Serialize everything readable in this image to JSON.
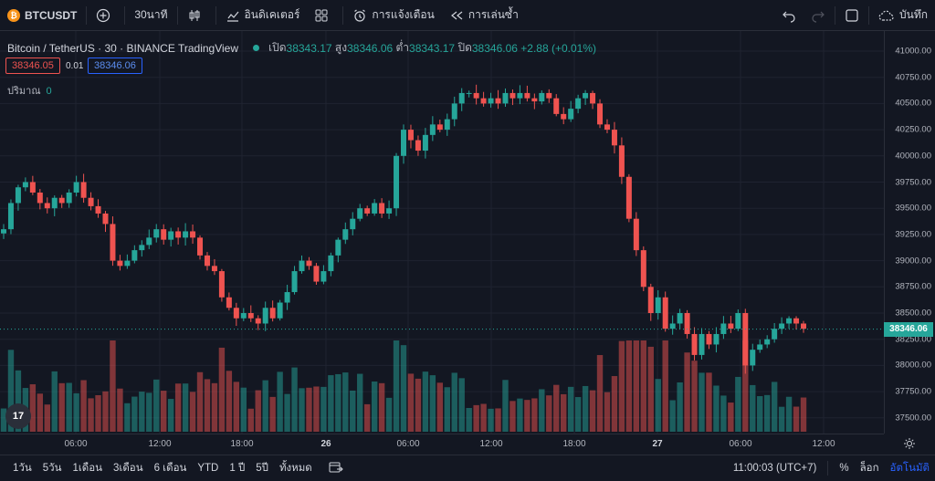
{
  "topbar": {
    "symbol": "BTCUSDT",
    "interval": "30นาที",
    "indicators": "อินดิเคเตอร์",
    "alert": "การแจ้งเตือน",
    "replay": "การเล่นซ้ำ",
    "save": "บันทึก"
  },
  "legend": {
    "title": "Bitcoin / TetherUS · 30 · BINANCE  TradingView",
    "open_label": "เปิด",
    "open": "38343.17",
    "high_label": "สูง",
    "high": "38346.06",
    "low_label": "ต่ำ",
    "low": "38343.17",
    "close_label": "ปิด",
    "close": "38346.06",
    "change": "+2.88 (+0.01%)",
    "bid": "38346.05",
    "spread": "0.01",
    "ask": "38346.06",
    "volume_label": "ปริมาณ",
    "volume": "0"
  },
  "price_axis": {
    "ticks": [
      "41000.00",
      "40750.00",
      "40500.00",
      "40250.00",
      "40000.00",
      "39750.00",
      "39500.00",
      "39250.00",
      "39000.00",
      "38750.00",
      "38500.00",
      "38250.00",
      "38000.00",
      "37750.00",
      "37500.00"
    ],
    "last_price": "38346.06"
  },
  "time_axis": {
    "ticks": [
      {
        "label": "06:00",
        "bold": false
      },
      {
        "label": "12:00",
        "bold": false
      },
      {
        "label": "18:00",
        "bold": false
      },
      {
        "label": "26",
        "bold": true
      },
      {
        "label": "06:00",
        "bold": false
      },
      {
        "label": "12:00",
        "bold": false
      },
      {
        "label": "18:00",
        "bold": false
      },
      {
        "label": "27",
        "bold": true
      },
      {
        "label": "06:00",
        "bold": false
      },
      {
        "label": "12:00",
        "bold": false
      }
    ]
  },
  "bottombar": {
    "ranges": [
      "1วัน",
      "5วัน",
      "1เดือน",
      "3เดือน",
      "6 เดือน",
      "YTD",
      "1 ปี",
      "5ปี",
      "ทั้งหมด"
    ],
    "clock": "11:00:03 (UTC+7)",
    "percent": "%",
    "log": "ล็อก",
    "auto": "อัตโนมัติ"
  },
  "colors": {
    "up": "#26a69a",
    "down": "#ef5350",
    "background": "#131722",
    "grid": "#1f2330"
  },
  "chart_data": {
    "type": "candlestick",
    "symbol": "BTCUSDT",
    "interval": "30",
    "ylim": [
      37400,
      41100
    ],
    "closes": [
      39300,
      39550,
      39700,
      39750,
      39650,
      39550,
      39500,
      39600,
      39550,
      39650,
      39750,
      39600,
      39520,
      39450,
      39350,
      39000,
      38950,
      39000,
      39100,
      39150,
      39220,
      39300,
      39200,
      39280,
      39220,
      39280,
      39220,
      39050,
      38950,
      38900,
      38650,
      38550,
      38450,
      38500,
      38450,
      38400,
      38550,
      38450,
      38600,
      38700,
      38900,
      39000,
      38950,
      38800,
      38900,
      39050,
      39200,
      39300,
      39400,
      39500,
      39450,
      39550,
      39450,
      39500,
      40000,
      40250,
      40150,
      40050,
      40200,
      40300,
      40250,
      40350,
      40500,
      40600,
      40600,
      40550,
      40500,
      40550,
      40500,
      40600,
      40550,
      40600,
      40550,
      40520,
      40600,
      40550,
      40400,
      40350,
      40450,
      40550,
      40600,
      40500,
      40300,
      40250,
      40100,
      39800,
      39400,
      39100,
      38750,
      38500,
      38650,
      38350,
      38400,
      38500,
      38300,
      38100,
      38300,
      38200,
      38300,
      38400,
      38350,
      38500,
      38000,
      38150,
      38200,
      38250,
      38350,
      38400,
      38450,
      38400,
      38350
    ],
    "volume_max": 1
  }
}
